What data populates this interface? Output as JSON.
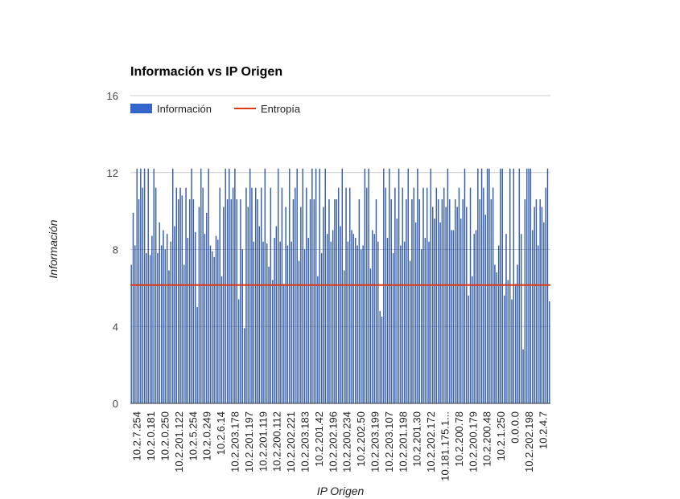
{
  "chart_data": {
    "type": "bar",
    "title": "Información vs IP Origen",
    "xlabel": "IP Origen",
    "ylabel": "Información",
    "ylim": [
      0,
      16
    ],
    "y_ticks": [
      0,
      4,
      8,
      12,
      16
    ],
    "grid": true,
    "legend_position": "top-left",
    "colors": {
      "bars": "#3366cc",
      "bar_outline": "#1a3a7a",
      "line": "#dc3912",
      "grid": "#cccccc",
      "baseline": "#333333"
    },
    "x_tick_labels": [
      "10.2.7.254",
      "10.2.0.181",
      "10.2.0.250",
      "10.2.201.122",
      "10.2.5.254",
      "10.2.0.249",
      "10.2.6.14",
      "10.2.203.178",
      "10.2.201.197",
      "10.2.201.119",
      "10.2.200.112",
      "10.2.202.221",
      "10.2.203.183",
      "10.2.201.42",
      "10.2.202.196",
      "10.2.200.234",
      "10.2.202.50",
      "10.2.203.199",
      "10.2.203.107",
      "10.2.201.198",
      "10.2.201.30",
      "10.2.202.172",
      "10.181.175.1...",
      "10.2.200.78",
      "10.2.200.179",
      "10.2.200.48",
      "10.2.1.250",
      "0.0.0.0",
      "10.2.202.198",
      "10.2.4.7"
    ],
    "series": [
      {
        "name": "Información",
        "kind": "bar",
        "values": [
          7.2,
          9.9,
          8.2,
          12.2,
          10.6,
          12.2,
          11.2,
          12.2,
          7.8,
          12.2,
          7.7,
          8.7,
          12.2,
          11.2,
          7.8,
          9.4,
          8.2,
          9.0,
          8.0,
          8.8,
          6.9,
          8.4,
          12.2,
          9.2,
          11.2,
          10.6,
          11.2,
          10.8,
          7.2,
          11.2,
          8.6,
          10.6,
          12.2,
          10.6,
          8.9,
          5.0,
          10.2,
          12.2,
          11.2,
          8.8,
          9.9,
          12.2,
          8.2,
          7.9,
          7.6,
          8.7,
          8.5,
          11.2,
          6.6,
          10.2,
          12.2,
          10.6,
          12.2,
          10.6,
          11.2,
          12.2,
          10.6,
          5.4,
          10.6,
          8.0,
          3.9,
          11.2,
          10.2,
          12.2,
          11.2,
          8.4,
          11.2,
          10.6,
          9.2,
          11.2,
          8.4,
          12.2,
          8.3,
          7.1,
          11.2,
          6.4,
          8.6,
          9.2,
          12.2,
          8.4,
          11.2,
          6.2,
          10.2,
          8.2,
          12.2,
          8.4,
          10.6,
          11.2,
          12.2,
          7.4,
          10.2,
          12.2,
          8.0,
          11.2,
          8.6,
          10.6,
          12.2,
          10.6,
          12.2,
          6.6,
          12.2,
          7.8,
          10.2,
          12.2,
          8.8,
          10.6,
          8.4,
          9.0,
          10.6,
          10.6,
          11.2,
          9.2,
          12.2,
          6.9,
          11.2,
          8.4,
          11.2,
          9.0,
          8.8,
          8.6,
          8.2,
          10.6,
          8.0,
          8.2,
          12.2,
          11.2,
          12.2,
          7.0,
          9.0,
          8.8,
          10.6,
          8.4,
          4.8,
          4.5,
          12.2,
          11.2,
          8.6,
          12.2,
          10.6,
          7.8,
          11.2,
          9.6,
          12.2,
          8.2,
          11.2,
          8.4,
          10.6,
          12.2,
          7.4,
          10.6,
          11.2,
          9.4,
          12.2,
          10.6,
          8.0,
          11.2,
          8.6,
          11.2,
          8.4,
          12.2,
          10.2,
          9.6,
          11.2,
          10.6,
          9.4,
          10.6,
          11.2,
          10.2,
          12.2,
          10.6,
          9.0,
          9.0,
          10.6,
          10.2,
          11.2,
          9.6,
          10.6,
          12.2,
          10.2,
          5.6,
          11.2,
          6.6,
          8.8,
          9.0,
          12.2,
          10.6,
          12.2,
          11.2,
          9.8,
          12.2,
          12.2,
          10.6,
          11.2,
          7.2,
          6.8,
          8.2,
          12.2,
          12.2,
          5.6,
          8.8,
          6.4,
          12.2,
          5.4,
          12.2,
          6.2,
          7.2,
          12.2,
          8.8,
          2.8,
          10.6,
          12.2,
          12.2,
          12.2,
          9.0,
          10.2,
          10.6,
          8.2,
          10.6,
          10.2,
          9.4,
          11.2,
          12.2,
          5.3
        ]
      },
      {
        "name": "Entropía",
        "kind": "line",
        "value": 6.15
      }
    ]
  }
}
